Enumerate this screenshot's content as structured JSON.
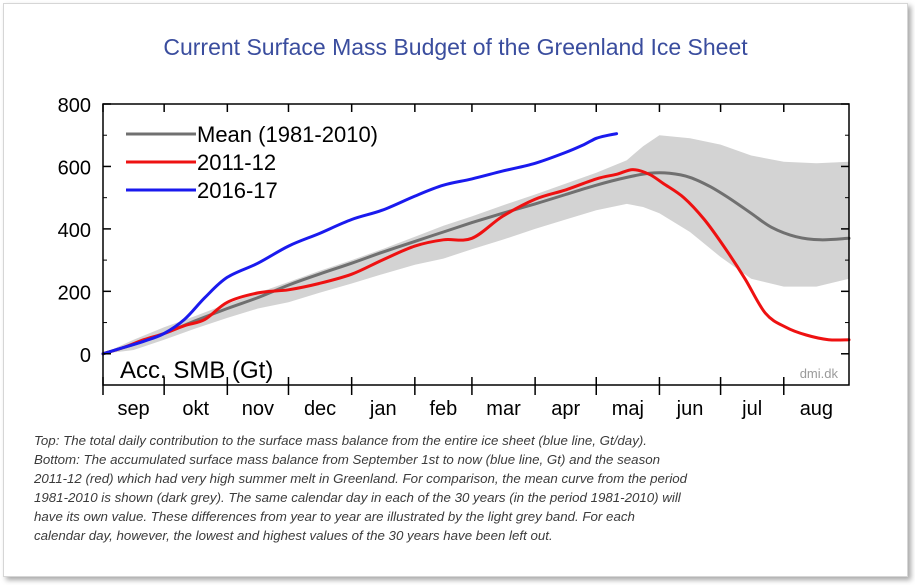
{
  "chart_data": {
    "type": "line",
    "title": "Current Surface Mass Budget of the Greenland Ice Sheet",
    "ylabel": "Acc. SMB (Gt)",
    "watermark": "dmi.dk",
    "ylim": [
      -100,
      800
    ],
    "yticks": [
      0,
      200,
      400,
      600,
      800
    ],
    "xlim": [
      0,
      366
    ],
    "months": [
      {
        "label": "sep",
        "start": 0
      },
      {
        "label": "okt",
        "start": 30
      },
      {
        "label": "nov",
        "start": 61
      },
      {
        "label": "dec",
        "start": 91
      },
      {
        "label": "jan",
        "start": 122
      },
      {
        "label": "feb",
        "start": 153
      },
      {
        "label": "mar",
        "start": 181
      },
      {
        "label": "apr",
        "start": 212
      },
      {
        "label": "maj",
        "start": 242
      },
      {
        "label": "jun",
        "start": 273
      },
      {
        "label": "jul",
        "start": 303
      },
      {
        "label": "aug",
        "start": 334
      }
    ],
    "legend_position": "top-left",
    "band": {
      "color": "#d3d3d3",
      "x": [
        0,
        15,
        30,
        45,
        61,
        76,
        91,
        106,
        122,
        137,
        153,
        167,
        181,
        196,
        212,
        227,
        242,
        257,
        265,
        273,
        288,
        303,
        318,
        334,
        350,
        366
      ],
      "upper": [
        0,
        45,
        85,
        120,
        160,
        195,
        230,
        265,
        300,
        335,
        375,
        410,
        440,
        475,
        510,
        545,
        580,
        620,
        665,
        700,
        690,
        670,
        635,
        615,
        610,
        615
      ],
      "lower": [
        0,
        12,
        45,
        80,
        115,
        145,
        165,
        195,
        225,
        255,
        285,
        305,
        335,
        365,
        400,
        430,
        460,
        480,
        470,
        450,
        390,
        310,
        240,
        215,
        215,
        240
      ]
    },
    "series": [
      {
        "name": "Mean (1981-2010)",
        "color": "#707070",
        "x": [
          0,
          15,
          30,
          45,
          61,
          76,
          91,
          106,
          122,
          137,
          153,
          167,
          181,
          196,
          212,
          227,
          242,
          257,
          268,
          278,
          288,
          298,
          308,
          318,
          328,
          340,
          352,
          366
        ],
        "y": [
          0,
          30,
          65,
          105,
          145,
          180,
          220,
          255,
          290,
          325,
          360,
          390,
          420,
          450,
          480,
          510,
          540,
          565,
          578,
          578,
          565,
          535,
          495,
          450,
          405,
          375,
          365,
          370
        ]
      },
      {
        "name": "2011-12",
        "color": "#ee1111",
        "x": [
          0,
          10,
          20,
          30,
          40,
          50,
          61,
          76,
          91,
          106,
          122,
          137,
          153,
          167,
          181,
          196,
          212,
          227,
          242,
          252,
          260,
          268,
          275,
          285,
          295,
          305,
          315,
          325,
          335,
          345,
          356,
          366
        ],
        "y": [
          0,
          20,
          45,
          65,
          90,
          110,
          165,
          195,
          205,
          225,
          255,
          300,
          345,
          365,
          370,
          440,
          495,
          525,
          560,
          575,
          590,
          575,
          545,
          500,
          430,
          340,
          240,
          130,
          85,
          60,
          45,
          45
        ]
      },
      {
        "name": "2016-17",
        "color": "#1a1aee",
        "x": [
          0,
          10,
          20,
          30,
          40,
          50,
          61,
          76,
          91,
          106,
          122,
          137,
          153,
          167,
          181,
          196,
          212,
          227,
          236,
          242,
          248,
          252
        ],
        "y": [
          0,
          20,
          40,
          65,
          110,
          180,
          245,
          290,
          345,
          385,
          430,
          460,
          505,
          540,
          560,
          585,
          610,
          645,
          670,
          690,
          700,
          705
        ]
      }
    ]
  },
  "caption": {
    "lines": [
      "Top: The total daily contribution to the surface mass balance from the entire ice sheet (blue line, Gt/day).",
      "Bottom: The accumulated surface mass balance from September 1st to now (blue line, Gt) and the season",
      "2011-12 (red) which had very high summer melt in Greenland. For comparison, the mean curve from the period",
      "1981-2010 is shown (dark grey). The same calendar day in each of the 30 years (in the period 1981-2010) will",
      "have its own value. These differences from year to year are illustrated by the light grey band. For each",
      "calendar day, however, the lowest and highest values of the 30 years have been left out."
    ]
  }
}
